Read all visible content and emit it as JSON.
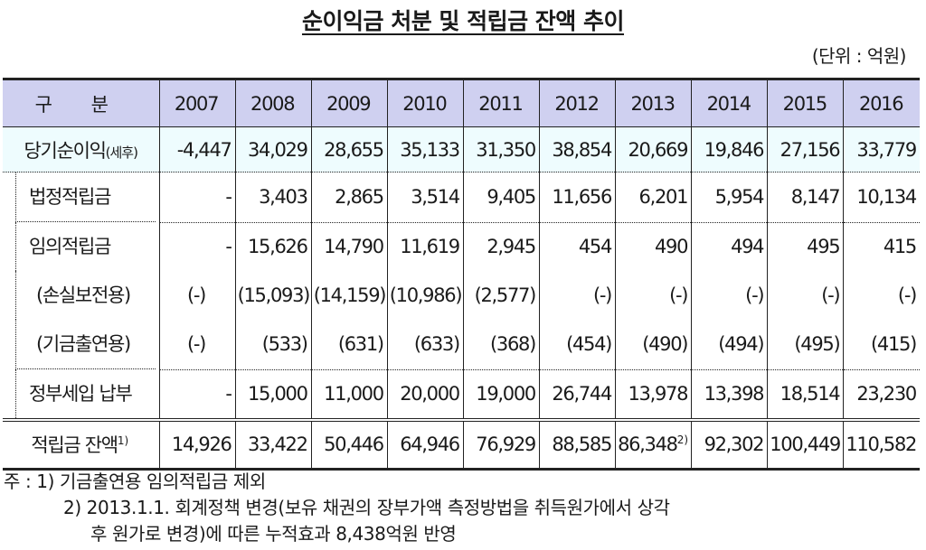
{
  "title": "순이익금 처분 및 적립금 잔액 추이",
  "unit": "(단위 : 억원)",
  "table": {
    "header": [
      "구 분",
      "2007",
      "2008",
      "2009",
      "2010",
      "2011",
      "2012",
      "2013",
      "2014",
      "2015",
      "2016"
    ],
    "rows": [
      {
        "label": "당기순이익",
        "label_suffix": "(세후)",
        "values": [
          "-4,447",
          "34,029",
          "28,655",
          "35,133",
          "31,350",
          "38,854",
          "20,669",
          "19,846",
          "27,156",
          "33,779"
        ]
      },
      {
        "label": "법정적립금",
        "values": [
          "-",
          "3,403",
          "2,865",
          "3,514",
          "9,405",
          "11,656",
          "6,201",
          "5,954",
          "8,147",
          "10,134"
        ]
      },
      {
        "label": "임의적립금",
        "values": [
          "-",
          "15,626",
          "14,790",
          "11,619",
          "2,945",
          "454",
          "490",
          "494",
          "495",
          "415"
        ]
      },
      {
        "label": "(손실보전용)",
        "values": [
          "(-)",
          "(15,093)",
          "(14,159)",
          "(10,986)",
          "(2,577)",
          "(-)",
          "(-)",
          "(-)",
          "(-)",
          "(-)"
        ]
      },
      {
        "label": "(기금출연용)",
        "values": [
          "(-)",
          "(533)",
          "(631)",
          "(633)",
          "(368)",
          "(454)",
          "(490)",
          "(494)",
          "(495)",
          "(415)"
        ]
      },
      {
        "label": "정부세입 납부",
        "values": [
          "-",
          "15,000",
          "11,000",
          "20,000",
          "19,000",
          "26,744",
          "13,978",
          "13,398",
          "18,514",
          "23,230"
        ]
      }
    ],
    "total": {
      "label": "적립금 잔액",
      "label_sup": "1)",
      "values": [
        "14,926",
        "33,422",
        "50,446",
        "64,946",
        "76,929",
        "88,585",
        "86,348",
        "92,302",
        "100,449",
        "110,582"
      ],
      "value_sups": [
        "",
        "",
        "",
        "",
        "",
        "",
        "2)",
        "",
        "",
        ""
      ]
    }
  },
  "notes": {
    "prefix": "주 : ",
    "note1": "1) 기금출연용 임의적립금 제외",
    "note2": "2) 2013.1.1. 회계정책 변경(보유 채권의 장부가액 측정방법을 취득원가에서 상각",
    "note2_cont": "후 원가로 변경)에 따른 누적효과 8,438억원 반영"
  },
  "colors": {
    "header_bg": "#cfd0f0",
    "net_income_bg": "#eefcfe",
    "border": "#222222"
  }
}
